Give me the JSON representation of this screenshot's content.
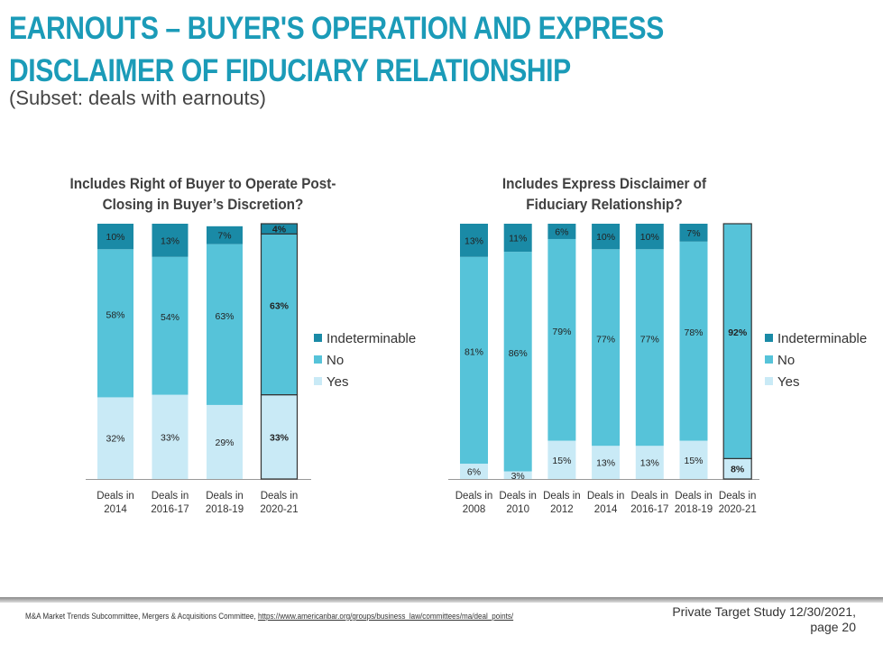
{
  "title_line1": "EARNOUTS – BUYER'S OPERATION AND EXPRESS",
  "title_line2": "DISCLAIMER OF FIDUCIARY RELATIONSHIP",
  "subtitle": "(Subset: deals with earnouts)",
  "colors": {
    "Indeterminable": "#1a8aa6",
    "No": "#56c3d9",
    "Yes": "#c9eaf6",
    "title": "#1b9bb8"
  },
  "chart_data": [
    {
      "type": "bar",
      "stacked": true,
      "title": "Includes Right of Buyer to Operate Post-Closing in Buyer’s Discretion?",
      "categories": [
        "Deals in 2014",
        "Deals in 2016-17",
        "Deals in 2018-19",
        "Deals in 2020-21"
      ],
      "series": [
        {
          "name": "Yes",
          "values": [
            32,
            33,
            29,
            33
          ]
        },
        {
          "name": "No",
          "values": [
            58,
            54,
            63,
            63
          ]
        },
        {
          "name": "Indeterminable",
          "values": [
            10,
            13,
            7,
            4
          ]
        }
      ],
      "ylim": [
        0,
        100
      ],
      "legend": "right",
      "highlighted_category": "Deals in 2020-21"
    },
    {
      "type": "bar",
      "stacked": true,
      "title": "Includes Express Disclaimer of Fiduciary Relationship?",
      "categories": [
        "Deals in 2008",
        "Deals in 2010",
        "Deals in 2012",
        "Deals in 2014",
        "Deals in 2016-17",
        "Deals in 2018-19",
        "Deals in 2020-21"
      ],
      "series": [
        {
          "name": "Yes",
          "values": [
            6,
            3,
            15,
            13,
            13,
            15,
            8
          ]
        },
        {
          "name": "No",
          "values": [
            81,
            86,
            79,
            77,
            77,
            78,
            92
          ]
        },
        {
          "name": "Indeterminable",
          "values": [
            13,
            11,
            6,
            10,
            10,
            7,
            0
          ]
        }
      ],
      "ylim": [
        0,
        100
      ],
      "legend": "right",
      "highlighted_category": "Deals in 2020-21"
    }
  ],
  "footer": {
    "source": "M&A Market Trends Subcommittee, Mergers & Acquisitions Committee, ",
    "link": "https://www.americanbar.org/groups/business_law/committees/ma/deal_points/",
    "study": "Private Target Study 12/30/2021,",
    "page": "page 20"
  }
}
